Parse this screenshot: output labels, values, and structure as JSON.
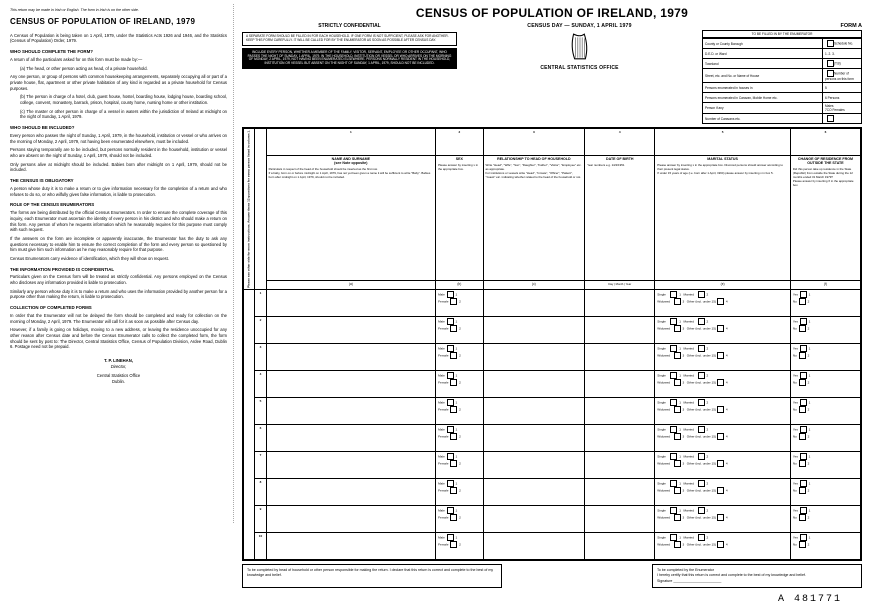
{
  "left": {
    "top_note": "This return may be made in Irish or English.\nThe form in Irish is on the other side.",
    "title": "CENSUS OF POPULATION OF IRELAND, 1979",
    "intro": "A Census of Population is being taken on 1 April, 1979, under the Statistics Acts 1926 and 1946, and the Statistics (Census of Population) Order, 1979.",
    "sections": [
      {
        "h": "WHO SHOULD COMPLETE THE FORM?",
        "paras": [
          "A return of all the particulars asked for on this form must be made by:—",
          "(a)  The head, or other person acting as head, of a private household.",
          "Any one person, or group of persons with common housekeeping arrangements, separately occupying all or part of a private house, flat, apartment or other private habitation of any kind is regarded as a private household for Census purposes.",
          "(b)  The person in charge of a hotel, club, guest house, hostel, boarding house, lodging house, boarding school, college, convent, monastery, barrack, prison, hospital, county home, nursing home or other institution.",
          "(c)  The master or other person in charge of a vessel in waters within the jurisdiction of Ireland at midnight on the night of Sunday, 1 April, 1979."
        ]
      },
      {
        "h": "WHO SHOULD BE INCLUDED?",
        "paras": [
          "Every person who passes the night of Sunday, 1 April, 1979, in the household, institution or vessel or who arrives on the morning of Monday, 2 April, 1979, not having been enumerated elsewhere, must be included.",
          "Persons staying temporarily are to be included, but persons normally resident in the household, institution or vessel who are absent on the night of Sunday, 1 April, 1979, should not be included.",
          "Only persons alive at midnight should be included. Babies born after midnight on 1 April, 1979, should not be included."
        ]
      },
      {
        "h": "THE CENSUS IS OBLIGATORY",
        "paras": [
          "A person whose duty it is to make a return or to give information necessary for the completion of a return and who refuses to do so, or who wilfully gives false information, is liable to prosecution."
        ]
      },
      {
        "h": "ROLE OF THE CENSUS ENUMERATORS",
        "paras": [
          "The forms are being distributed by the official Census Enumerators. In order to ensure the complete coverage of this inquiry, each Enumerator must ascertain the identity of every person in his district and who should make a return on this form. Any person of whom he requests information which he reasonably requires for this purpose must comply with such request.",
          "If the answers on the form are incomplete or apparently inaccurate, the Enumerator has the duty to ask any questions necessary to enable him to ensure the correct completion of the form and every person so questioned by him must give him such information as he may reasonably require for that purpose.",
          "Census Enumerators carry evidence of identification, which they will show on request."
        ]
      },
      {
        "h": "THE INFORMATION PROVIDED IS CONFIDENTIAL",
        "paras": [
          "Particulars given on the Census form will be treated as strictly confidential. Any persons employed on the Census who discloses any information provided is liable to prosecution.",
          "Similarly any person whose duty it is to make a return and who uses the information provided by another person for a purpose other than making the return, is liable to prosecution."
        ]
      },
      {
        "h": "COLLECTION OF COMPLETED FORMS",
        "paras": [
          "In order that the Enumerator will not be delayed the form should be completed and ready for collection on the morning of Monday, 2 April, 1979. The Enumerator will call for it as soon as possible after Census day.",
          "However, if a family is going on holidays, moving to a new address, or leaving the residence unoccupied for any other reason after Census date and before the Census Enumerator calls to collect the completed form, the form should be sent by post to: The Director, Central Statistics Office, Census of Population Division, Ardee Road, Dublin 6.  Postage need not be prepaid."
        ]
      }
    ],
    "signature_name": "T. P. LINEHAN,",
    "signature_title": "Director,",
    "office": "Central Statistics Office\nDublin."
  },
  "right": {
    "main_title": "CENSUS OF POPULATION OF IRELAND, 1979",
    "confidential": "STRICTLY CONFIDENTIAL",
    "census_day": "CENSUS DAY — SUNDAY, 1 APRIL 1979",
    "cso": "CENTRAL STATISTICS OFFICE",
    "form_label": "FORM A",
    "note1": "A SEPARATE FORM SHOULD BE FILLED IN FOR EACH HOUSEHOLD. IF ONE FORM IS NOT SUFFICIENT, PLEASE ASK FOR ANOTHER. KEEP THIS FORM CAREFULLY. IT WILL BE CALLED FOR BY THE ENUMERATOR AS SOON AS POSSIBLE AFTER CENSUS DAY.",
    "note2": "INCLUDE EVERY PERSON, WHETHER A MEMBER OF THE FAMILY, VISITOR, SERVANT, EMPLOYEE OR OTHER OCCUPANT, WHO PASSES THE NIGHT OF SUNDAY, 1 APRIL, 1979, IN THE HOUSEHOLD, INSTITUTION OR VESSEL OR WHO ARRIVES ON THE MORNING OF MONDAY, 2 APRIL, 1979, NOT HAVING BEEN ENUMERATED ELSEWHERE. PERSONS NORMALLY RESIDENT IN THE HOUSEHOLD, INSTITUTION OR VESSEL BUT ABSENT ON THE NIGHT OF SUNDAY, 1 APRIL, 1979, SHOULD NOT BE INCLUDED.",
    "enumerator_header": "TO BE FILLED IN BY THE ENUMERATOR",
    "enum_rows": [
      {
        "l": "County or County Borough",
        "r": "Schedule No."
      },
      {
        "l": "D.E.D. or Ward",
        "rn": "1.   2.   3."
      },
      {
        "l": "Townland",
        "r": "(T.B)"
      },
      {
        "l": "Street, etc. and No. or Name of House",
        "r": "Number of persons on this form"
      },
      {
        "l": "Persons enumerated in houses in",
        "rn": "5"
      },
      {
        "l": "Persons enumerated in Caravan, Mobile Home etc.",
        "rn": "6     Persons"
      },
      {
        "l": "Person if any",
        "rn": "Males\n7CO    Females"
      },
      {
        "l": "Number of Caravans etc.",
        "r": ""
      }
    ],
    "columns": [
      {
        "num": "1",
        "title": "NAME AND SURNAME\n(see Note opposite)",
        "sub": "Particulars in respect of the head of the household should be inserted as the first row.\nIf a baby, born on or before midnight on 1 April, 1979, has not yet been given a name it will be sufficient to write \"Baby\". Babies born after midnight on 1 April, 1979, should not be included.",
        "foot": "(a)"
      },
      {
        "num": "2",
        "title": "SEX",
        "sub": "Please answer by inserting x in the appropriate box.",
        "foot": "(b)",
        "opts": [
          "Male",
          "Female"
        ]
      },
      {
        "num": "3",
        "title": "RELATIONSHIP TO HEAD OF HOUSEHOLD",
        "sub": "Write \"Head\", \"Wife\", \"Son\", \"Daughter\", \"Father\", \"Visitor\", \"Employee\" etc. as appropriate.\nFor institutions or vessels write \"Head\", \"Inmate\", \"Officer\", \"Patient\", \"Guest\" etc. indicating whether related to the head of the household or not.",
        "foot": "(c)"
      },
      {
        "num": "4",
        "title": "DATE OF BIRTH",
        "sub": "Year numbers e.g. 14/2/1951",
        "foot": "(d)",
        "heads": [
          "Day",
          "Month",
          "Year"
        ]
      },
      {
        "num": "5",
        "title": "MARITAL STATUS",
        "sub": "Please answer by inserting x in the appropriate box. Divorced persons should answer according to their present legal status.\nIf under 15 years of age (i.e. born after 1 April, 1964) please answer by inserting x in box 5.",
        "foot": "(e)",
        "opts": [
          "Single",
          "Married",
          "Widowed",
          "Other (incl. under 15)"
        ]
      },
      {
        "num": "6",
        "title": "CHANGE OF RESIDENCE FROM OUTSIDE THE STATE",
        "sub": "Did this person take up residence in the State (Republic) from outside the State during the 12 months ended 31 March 1979?\nPlease answer by inserting X in the appropriate box.",
        "foot": "(f)",
        "opts": [
          "Yes",
          "No"
        ]
      }
    ],
    "side_label": "Please see other side for more instructions. Answer these 12 questions for every person listed in column 1.",
    "rows": 10,
    "bottom_left_box": "To be completed by head of household or other person responsible for making the return.\nI declare that this return is correct and complete to the best of my knowledge and belief.",
    "bottom_right_box": "To be completed by the Enumerator\nI hereby certify that this return is correct and complete to the best of my knowledge and belief.\nSignature ________________________",
    "ref_number": "A  481771"
  }
}
